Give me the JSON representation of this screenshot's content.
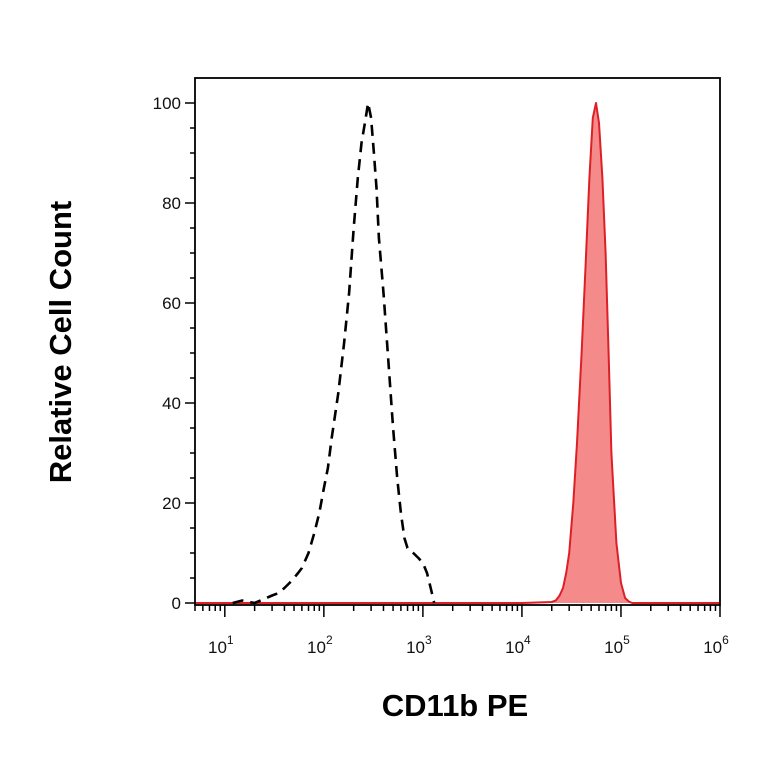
{
  "chart_data": {
    "type": "area",
    "title": "",
    "xlabel": "CD11b PE",
    "ylabel": "Relative Cell Count",
    "x_scale": "log",
    "xlim": [
      5,
      1000000
    ],
    "ylim": [
      0,
      100
    ],
    "grid": false,
    "x_ticks": [
      {
        "value": 10,
        "base": "10",
        "exp": "1"
      },
      {
        "value": 100,
        "base": "10",
        "exp": "2"
      },
      {
        "value": 1000,
        "base": "10",
        "exp": "3"
      },
      {
        "value": 10000,
        "base": "10",
        "exp": "4"
      },
      {
        "value": 100000,
        "base": "10",
        "exp": "5"
      },
      {
        "value": 1000000,
        "base": "10",
        "exp": "6"
      }
    ],
    "y_ticks": [
      "0",
      "20",
      "40",
      "60",
      "80",
      "100"
    ],
    "series": [
      {
        "style": "dashed",
        "color": "#000000",
        "fill": false,
        "x": [
          12,
          15,
          20,
          25,
          30,
          35,
          40,
          45,
          50,
          55,
          60,
          70,
          80,
          90,
          100,
          110,
          120,
          140,
          160,
          180,
          200,
          220,
          240,
          260,
          280,
          300,
          320,
          340,
          360,
          400,
          450,
          500,
          550,
          600,
          650,
          700,
          800,
          900,
          1000,
          1100,
          1200,
          1300
        ],
        "y": [
          0,
          0.5,
          0,
          0.8,
          1.5,
          2,
          3,
          4,
          5,
          6,
          7,
          10,
          14,
          18,
          23,
          27,
          33,
          42,
          52,
          62,
          75,
          85,
          92,
          96,
          100,
          97,
          90,
          83,
          73,
          62,
          48,
          35,
          25,
          18,
          13,
          11,
          10,
          9,
          8,
          6,
          3,
          0
        ]
      },
      {
        "style": "solid",
        "color": "#dd1f26",
        "fill": true,
        "fill_color": "#f58a8a",
        "x": [
          5,
          100,
          1000,
          10000,
          20000,
          22000,
          24000,
          26000,
          28000,
          30000,
          33000,
          36000,
          40000,
          44000,
          48000,
          52000,
          56000,
          60000,
          65000,
          70000,
          75000,
          80000,
          90000,
          100000,
          110000,
          120000,
          130000,
          1000000
        ],
        "y": [
          0,
          0,
          0,
          0,
          0.2,
          0.5,
          1.5,
          3,
          6,
          10,
          20,
          32,
          50,
          68,
          85,
          97,
          100,
          96,
          85,
          70,
          50,
          30,
          12,
          4,
          1,
          0.3,
          0,
          0
        ]
      }
    ]
  }
}
